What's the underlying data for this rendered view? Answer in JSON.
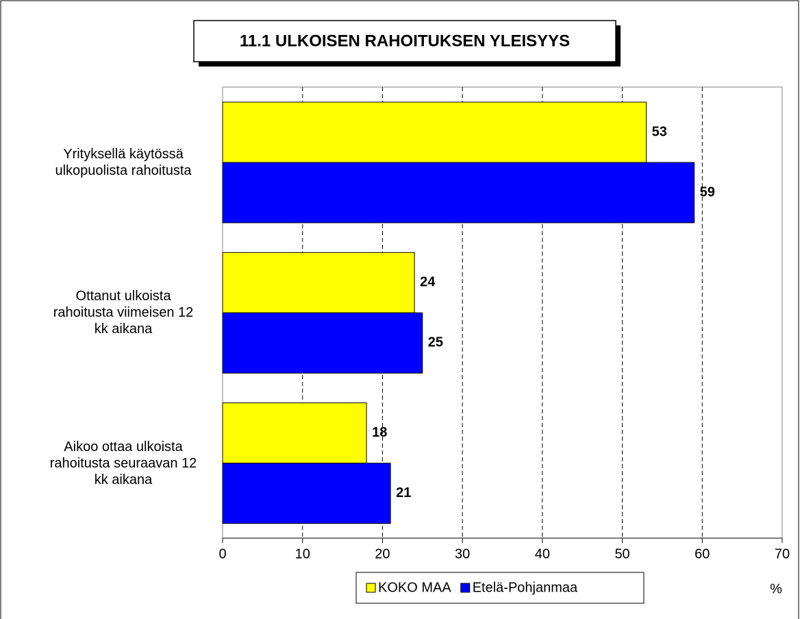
{
  "chart_data": {
    "type": "hbar",
    "title": "11.1 ULKOISEN RAHOITUKSEN YLEISYYS",
    "categories": [
      "Yrityksellä käytössä\nulkopuolista rahoitusta",
      "Ottanut ulkoista\nrahoitusta viimeisen 12\nkk aikana",
      "Aikoo ottaa ulkoista\nrahoitusta seuraavan 12\nkk aikana"
    ],
    "series": [
      {
        "name": "KOKO MAA",
        "color": "#ffff00",
        "values": [
          53,
          24,
          18
        ]
      },
      {
        "name": "Etelä-Pohjanmaa",
        "color": "#0000ff",
        "values": [
          59,
          25,
          21
        ]
      }
    ],
    "xlabel": "%",
    "xlim": [
      0,
      70
    ],
    "xticks": [
      0,
      10,
      20,
      30,
      40,
      50,
      60,
      70
    ],
    "grid": true
  }
}
